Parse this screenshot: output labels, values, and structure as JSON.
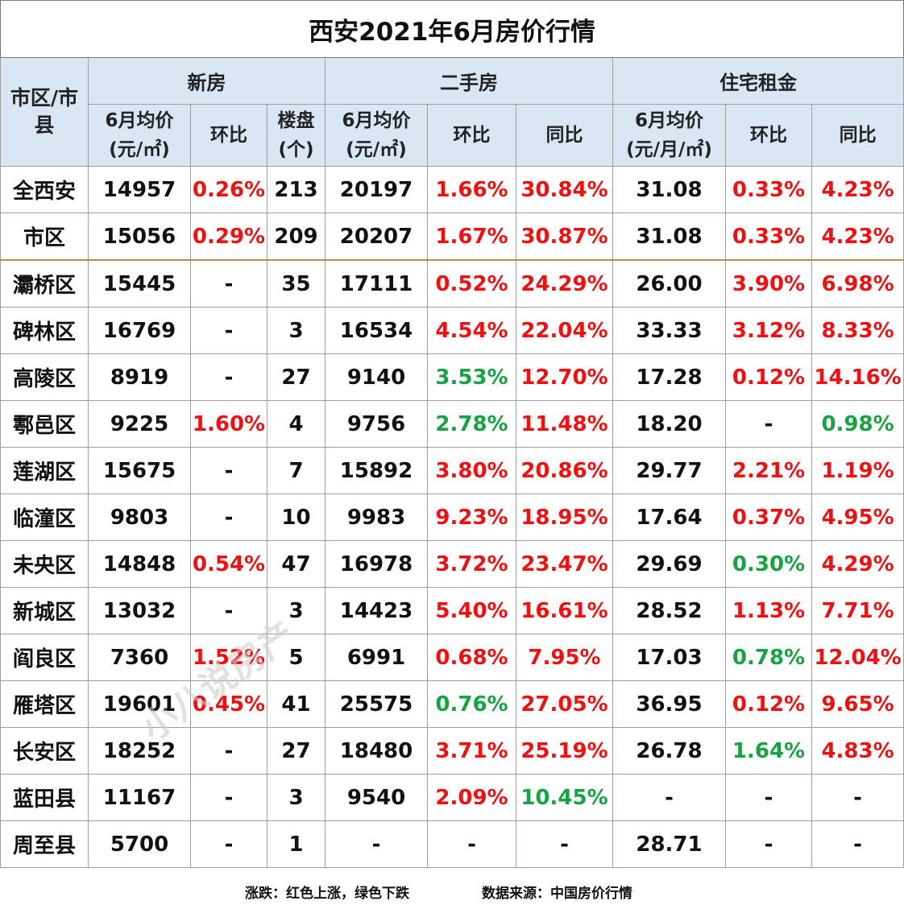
{
  "title": "西安2021年6月房价行情",
  "headers": {
    "region": "市区/市县",
    "group_new": "新房",
    "group_second": "二手房",
    "group_rent": "住宅租金",
    "new_price_line1": "6月均价",
    "new_price_line2": "(元/㎡)",
    "new_mom": "环比",
    "new_count_line1": "楼盘",
    "new_count_line2": "(个)",
    "second_price_line1": "6月均价",
    "second_price_line2": "(元/㎡)",
    "second_mom": "环比",
    "second_yoy": "同比",
    "rent_price_line1": "6月均价",
    "rent_price_line2": "(元/月/㎡)",
    "rent_mom": "环比",
    "rent_yoy": "同比"
  },
  "colors": {
    "rise": "#ee1111",
    "fall": "#17a341",
    "header_bg": "#d9e6f4",
    "separator": "#c7864a"
  },
  "rows": [
    {
      "region": "全西安",
      "new_price": "14957",
      "new_mom": "0.26%",
      "new_mom_c": "red",
      "new_count": "213",
      "second_price": "20197",
      "second_mom": "1.66%",
      "second_mom_c": "red",
      "second_yoy": "30.84%",
      "second_yoy_c": "red",
      "rent_price": "31.08",
      "rent_mom": "0.33%",
      "rent_mom_c": "red",
      "rent_yoy": "4.23%",
      "rent_yoy_c": "red"
    },
    {
      "region": "市区",
      "new_price": "15056",
      "new_mom": "0.29%",
      "new_mom_c": "red",
      "new_count": "209",
      "second_price": "20207",
      "second_mom": "1.67%",
      "second_mom_c": "red",
      "second_yoy": "30.87%",
      "second_yoy_c": "red",
      "rent_price": "31.08",
      "rent_mom": "0.33%",
      "rent_mom_c": "red",
      "rent_yoy": "4.23%",
      "rent_yoy_c": "red"
    },
    {
      "region": "灞桥区",
      "new_price": "15445",
      "new_mom": "-",
      "new_mom_c": "",
      "new_count": "35",
      "second_price": "17111",
      "second_mom": "0.52%",
      "second_mom_c": "red",
      "second_yoy": "24.29%",
      "second_yoy_c": "red",
      "rent_price": "26.00",
      "rent_mom": "3.90%",
      "rent_mom_c": "red",
      "rent_yoy": "6.98%",
      "rent_yoy_c": "red"
    },
    {
      "region": "碑林区",
      "new_price": "16769",
      "new_mom": "-",
      "new_mom_c": "",
      "new_count": "3",
      "second_price": "16534",
      "second_mom": "4.54%",
      "second_mom_c": "red",
      "second_yoy": "22.04%",
      "second_yoy_c": "red",
      "rent_price": "33.33",
      "rent_mom": "3.12%",
      "rent_mom_c": "red",
      "rent_yoy": "8.33%",
      "rent_yoy_c": "red"
    },
    {
      "region": "高陵区",
      "new_price": "8919",
      "new_mom": "-",
      "new_mom_c": "",
      "new_count": "27",
      "second_price": "9140",
      "second_mom": "3.53%",
      "second_mom_c": "green",
      "second_yoy": "12.70%",
      "second_yoy_c": "red",
      "rent_price": "17.28",
      "rent_mom": "0.12%",
      "rent_mom_c": "red",
      "rent_yoy": "14.16%",
      "rent_yoy_c": "red"
    },
    {
      "region": "鄠邑区",
      "new_price": "9225",
      "new_mom": "1.60%",
      "new_mom_c": "red",
      "new_count": "4",
      "second_price": "9756",
      "second_mom": "2.78%",
      "second_mom_c": "green",
      "second_yoy": "11.48%",
      "second_yoy_c": "red",
      "rent_price": "18.20",
      "rent_mom": "-",
      "rent_mom_c": "",
      "rent_yoy": "0.98%",
      "rent_yoy_c": "green"
    },
    {
      "region": "莲湖区",
      "new_price": "15675",
      "new_mom": "-",
      "new_mom_c": "",
      "new_count": "7",
      "second_price": "15892",
      "second_mom": "3.80%",
      "second_mom_c": "red",
      "second_yoy": "20.86%",
      "second_yoy_c": "red",
      "rent_price": "29.77",
      "rent_mom": "2.21%",
      "rent_mom_c": "red",
      "rent_yoy": "1.19%",
      "rent_yoy_c": "red"
    },
    {
      "region": "临潼区",
      "new_price": "9803",
      "new_mom": "-",
      "new_mom_c": "",
      "new_count": "10",
      "second_price": "9983",
      "second_mom": "9.23%",
      "second_mom_c": "red",
      "second_yoy": "18.95%",
      "second_yoy_c": "red",
      "rent_price": "17.64",
      "rent_mom": "0.37%",
      "rent_mom_c": "red",
      "rent_yoy": "4.95%",
      "rent_yoy_c": "red"
    },
    {
      "region": "未央区",
      "new_price": "14848",
      "new_mom": "0.54%",
      "new_mom_c": "red",
      "new_count": "47",
      "second_price": "16978",
      "second_mom": "3.72%",
      "second_mom_c": "red",
      "second_yoy": "23.47%",
      "second_yoy_c": "red",
      "rent_price": "29.69",
      "rent_mom": "0.30%",
      "rent_mom_c": "green",
      "rent_yoy": "4.29%",
      "rent_yoy_c": "red"
    },
    {
      "region": "新城区",
      "new_price": "13032",
      "new_mom": "-",
      "new_mom_c": "",
      "new_count": "3",
      "second_price": "14423",
      "second_mom": "5.40%",
      "second_mom_c": "red",
      "second_yoy": "16.61%",
      "second_yoy_c": "red",
      "rent_price": "28.52",
      "rent_mom": "1.13%",
      "rent_mom_c": "red",
      "rent_yoy": "7.71%",
      "rent_yoy_c": "red"
    },
    {
      "region": "阎良区",
      "new_price": "7360",
      "new_mom": "1.52%",
      "new_mom_c": "red",
      "new_count": "5",
      "second_price": "6991",
      "second_mom": "0.68%",
      "second_mom_c": "red",
      "second_yoy": "7.95%",
      "second_yoy_c": "red",
      "rent_price": "17.03",
      "rent_mom": "0.78%",
      "rent_mom_c": "green",
      "rent_yoy": "12.04%",
      "rent_yoy_c": "red"
    },
    {
      "region": "雁塔区",
      "new_price": "19601",
      "new_mom": "0.45%",
      "new_mom_c": "red",
      "new_count": "41",
      "second_price": "25575",
      "second_mom": "0.76%",
      "second_mom_c": "green",
      "second_yoy": "27.05%",
      "second_yoy_c": "red",
      "rent_price": "36.95",
      "rent_mom": "0.12%",
      "rent_mom_c": "red",
      "rent_yoy": "9.65%",
      "rent_yoy_c": "red"
    },
    {
      "region": "长安区",
      "new_price": "18252",
      "new_mom": "-",
      "new_mom_c": "",
      "new_count": "27",
      "second_price": "18480",
      "second_mom": "3.71%",
      "second_mom_c": "red",
      "second_yoy": "25.19%",
      "second_yoy_c": "red",
      "rent_price": "26.78",
      "rent_mom": "1.64%",
      "rent_mom_c": "green",
      "rent_yoy": "4.83%",
      "rent_yoy_c": "red"
    },
    {
      "region": "蓝田县",
      "new_price": "11167",
      "new_mom": "-",
      "new_mom_c": "",
      "new_count": "3",
      "second_price": "9540",
      "second_mom": "2.09%",
      "second_mom_c": "red",
      "second_yoy": "10.45%",
      "second_yoy_c": "green",
      "rent_price": "-",
      "rent_mom": "-",
      "rent_mom_c": "",
      "rent_yoy": "-",
      "rent_yoy_c": ""
    },
    {
      "region": "周至县",
      "new_price": "5700",
      "new_mom": "-",
      "new_mom_c": "",
      "new_count": "1",
      "second_price": "-",
      "second_mom": "-",
      "second_mom_c": "",
      "second_yoy": "-",
      "second_yoy_c": "",
      "rent_price": "28.71",
      "rent_mom": "-",
      "rent_mom_c": "",
      "rent_yoy": "-",
      "rent_yoy_c": ""
    }
  ],
  "footer": {
    "legend": "涨跌：红色上涨，绿色下跌",
    "source": "数据来源：中国房价行情"
  },
  "watermark": "小八说房产"
}
